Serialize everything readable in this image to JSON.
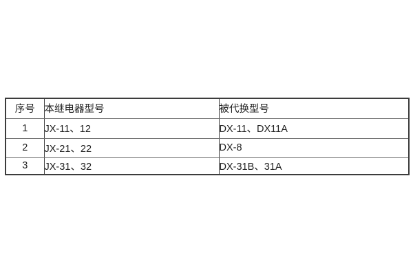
{
  "page": {
    "background_color": "#ffffff"
  },
  "table": {
    "name": "relay-model-replacement-table",
    "colors": {
      "outer_border": "#3c3c3c",
      "inner_vertical_border": "#454545",
      "inner_horizontal_border": "#6f6f6f",
      "text": "#212121",
      "cell_background": "#ffffff"
    },
    "headers": {
      "seq": "序号",
      "current_model": "本继电器型号",
      "replaced_model": "被代换型号"
    },
    "rows": [
      {
        "seq": "1",
        "current_model": "JX-11、12",
        "replaced_model": "DX-11、DX11A"
      },
      {
        "seq": "2",
        "current_model": "JX-21、22",
        "replaced_model": "DX-8"
      },
      {
        "seq": "3",
        "current_model": "JX-31、32",
        "replaced_model": "DX-31B、31A"
      }
    ]
  }
}
